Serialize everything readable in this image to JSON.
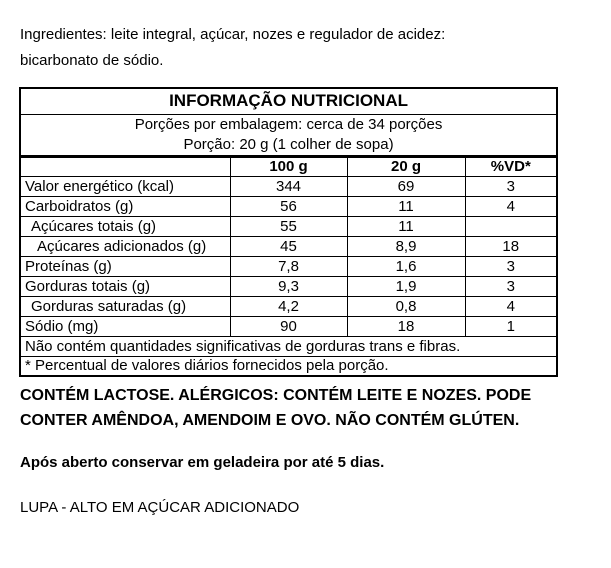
{
  "ingredients": {
    "line1": "Ingredientes: leite integral, açúcar, nozes e regulador de acidez:",
    "line2": "bicarbonato de sódio."
  },
  "table": {
    "title": "INFORMAÇÃO NUTRICIONAL",
    "servings_per_package": "Porções por embalagem: cerca de 34 porções",
    "serving_size": "Porção: 20 g (1 colher de sopa)",
    "columns": [
      "",
      "100 g",
      "20 g",
      "%VD*"
    ],
    "rows": [
      {
        "label": "Valor energético (kcal)",
        "per_100g": "344",
        "per_20g": "69",
        "vd": "3"
      },
      {
        "label": "Carboidratos (g)",
        "per_100g": "56",
        "per_20g": "11",
        "vd": "4"
      },
      {
        "label": "Açúcares totais (g)",
        "per_100g": "55",
        "per_20g": "11",
        "vd": ""
      },
      {
        "label": "Açúcares adicionados (g)",
        "per_100g": "45",
        "per_20g": "8,9",
        "vd": "18"
      },
      {
        "label": "Proteínas (g)",
        "per_100g": "7,8",
        "per_20g": "1,6",
        "vd": "3"
      },
      {
        "label": "Gorduras totais (g)",
        "per_100g": "9,3",
        "per_20g": "1,9",
        "vd": "3"
      },
      {
        "label": "Gorduras saturadas (g)",
        "per_100g": "4,2",
        "per_20g": "0,8",
        "vd": "4"
      },
      {
        "label": "Sódio (mg)",
        "per_100g": "90",
        "per_20g": "18",
        "vd": "1"
      }
    ],
    "footnote_no_trans": "Não contém quantidades significativas de gorduras trans e fibras.",
    "footnote_vd": "* Percentual de valores diários fornecidos pela porção."
  },
  "allergen_notice": {
    "line1": "CONTÉM LACTOSE. ALÉRGICOS: CONTÉM LEITE E NOZES. PODE",
    "line2": "CONTER AMÊNDOA, AMENDOIM E OVO. NÃO CONTÉM GLÚTEN."
  },
  "storage_notice": "Após aberto conservar em geladeira por até 5 dias.",
  "front_label_warning": "LUPA - ALTO EM AÇÚCAR ADICIONADO",
  "colors": {
    "text": "#000000",
    "background": "#ffffff",
    "border": "#000000"
  }
}
